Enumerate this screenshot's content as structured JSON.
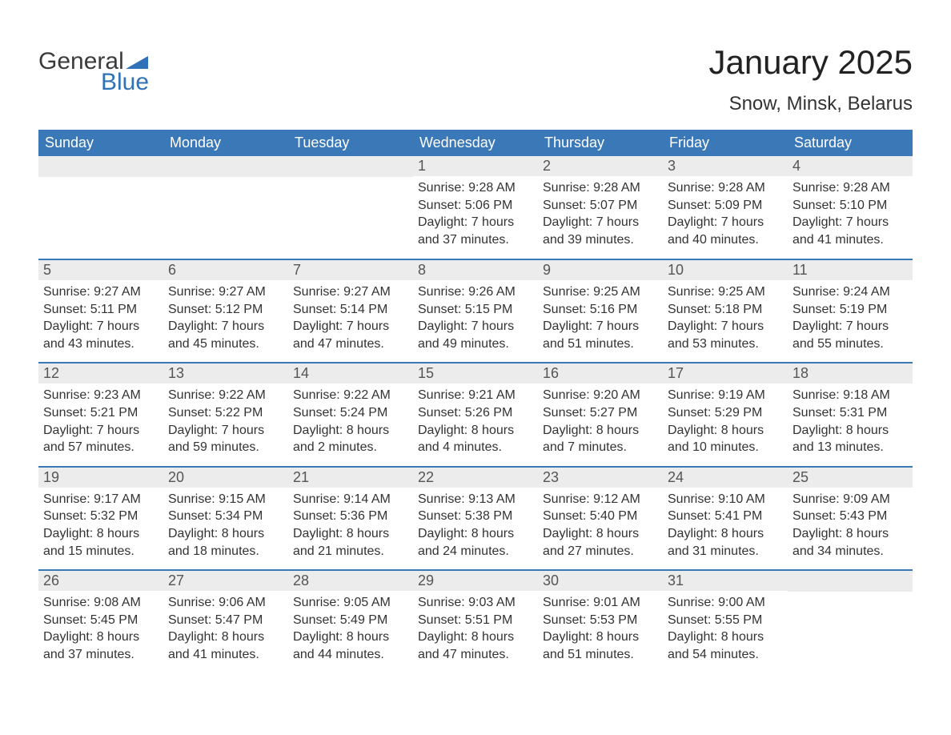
{
  "logo": {
    "text1": "General",
    "text2": "Blue",
    "tri_color": "#2f72b8"
  },
  "title": "January 2025",
  "location": "Snow, Minsk, Belarus",
  "styling": {
    "header_bg": "#3b78b8",
    "header_text": "#ffffff",
    "daynum_bg": "#ececec",
    "daynum_text": "#555555",
    "body_text": "#333333",
    "row_border": "#3b78b8",
    "page_bg": "#ffffff",
    "title_fontsize": 42,
    "location_fontsize": 24,
    "weekday_fontsize": 18,
    "body_fontsize": 16
  },
  "weekdays": [
    "Sunday",
    "Monday",
    "Tuesday",
    "Wednesday",
    "Thursday",
    "Friday",
    "Saturday"
  ],
  "weeks": [
    [
      {
        "day": "",
        "lines": []
      },
      {
        "day": "",
        "lines": []
      },
      {
        "day": "",
        "lines": []
      },
      {
        "day": "1",
        "lines": [
          "Sunrise: 9:28 AM",
          "Sunset: 5:06 PM",
          "Daylight: 7 hours and 37 minutes."
        ]
      },
      {
        "day": "2",
        "lines": [
          "Sunrise: 9:28 AM",
          "Sunset: 5:07 PM",
          "Daylight: 7 hours and 39 minutes."
        ]
      },
      {
        "day": "3",
        "lines": [
          "Sunrise: 9:28 AM",
          "Sunset: 5:09 PM",
          "Daylight: 7 hours and 40 minutes."
        ]
      },
      {
        "day": "4",
        "lines": [
          "Sunrise: 9:28 AM",
          "Sunset: 5:10 PM",
          "Daylight: 7 hours and 41 minutes."
        ]
      }
    ],
    [
      {
        "day": "5",
        "lines": [
          "Sunrise: 9:27 AM",
          "Sunset: 5:11 PM",
          "Daylight: 7 hours and 43 minutes."
        ]
      },
      {
        "day": "6",
        "lines": [
          "Sunrise: 9:27 AM",
          "Sunset: 5:12 PM",
          "Daylight: 7 hours and 45 minutes."
        ]
      },
      {
        "day": "7",
        "lines": [
          "Sunrise: 9:27 AM",
          "Sunset: 5:14 PM",
          "Daylight: 7 hours and 47 minutes."
        ]
      },
      {
        "day": "8",
        "lines": [
          "Sunrise: 9:26 AM",
          "Sunset: 5:15 PM",
          "Daylight: 7 hours and 49 minutes."
        ]
      },
      {
        "day": "9",
        "lines": [
          "Sunrise: 9:25 AM",
          "Sunset: 5:16 PM",
          "Daylight: 7 hours and 51 minutes."
        ]
      },
      {
        "day": "10",
        "lines": [
          "Sunrise: 9:25 AM",
          "Sunset: 5:18 PM",
          "Daylight: 7 hours and 53 minutes."
        ]
      },
      {
        "day": "11",
        "lines": [
          "Sunrise: 9:24 AM",
          "Sunset: 5:19 PM",
          "Daylight: 7 hours and 55 minutes."
        ]
      }
    ],
    [
      {
        "day": "12",
        "lines": [
          "Sunrise: 9:23 AM",
          "Sunset: 5:21 PM",
          "Daylight: 7 hours and 57 minutes."
        ]
      },
      {
        "day": "13",
        "lines": [
          "Sunrise: 9:22 AM",
          "Sunset: 5:22 PM",
          "Daylight: 7 hours and 59 minutes."
        ]
      },
      {
        "day": "14",
        "lines": [
          "Sunrise: 9:22 AM",
          "Sunset: 5:24 PM",
          "Daylight: 8 hours and 2 minutes."
        ]
      },
      {
        "day": "15",
        "lines": [
          "Sunrise: 9:21 AM",
          "Sunset: 5:26 PM",
          "Daylight: 8 hours and 4 minutes."
        ]
      },
      {
        "day": "16",
        "lines": [
          "Sunrise: 9:20 AM",
          "Sunset: 5:27 PM",
          "Daylight: 8 hours and 7 minutes."
        ]
      },
      {
        "day": "17",
        "lines": [
          "Sunrise: 9:19 AM",
          "Sunset: 5:29 PM",
          "Daylight: 8 hours and 10 minutes."
        ]
      },
      {
        "day": "18",
        "lines": [
          "Sunrise: 9:18 AM",
          "Sunset: 5:31 PM",
          "Daylight: 8 hours and 13 minutes."
        ]
      }
    ],
    [
      {
        "day": "19",
        "lines": [
          "Sunrise: 9:17 AM",
          "Sunset: 5:32 PM",
          "Daylight: 8 hours and 15 minutes."
        ]
      },
      {
        "day": "20",
        "lines": [
          "Sunrise: 9:15 AM",
          "Sunset: 5:34 PM",
          "Daylight: 8 hours and 18 minutes."
        ]
      },
      {
        "day": "21",
        "lines": [
          "Sunrise: 9:14 AM",
          "Sunset: 5:36 PM",
          "Daylight: 8 hours and 21 minutes."
        ]
      },
      {
        "day": "22",
        "lines": [
          "Sunrise: 9:13 AM",
          "Sunset: 5:38 PM",
          "Daylight: 8 hours and 24 minutes."
        ]
      },
      {
        "day": "23",
        "lines": [
          "Sunrise: 9:12 AM",
          "Sunset: 5:40 PM",
          "Daylight: 8 hours and 27 minutes."
        ]
      },
      {
        "day": "24",
        "lines": [
          "Sunrise: 9:10 AM",
          "Sunset: 5:41 PM",
          "Daylight: 8 hours and 31 minutes."
        ]
      },
      {
        "day": "25",
        "lines": [
          "Sunrise: 9:09 AM",
          "Sunset: 5:43 PM",
          "Daylight: 8 hours and 34 minutes."
        ]
      }
    ],
    [
      {
        "day": "26",
        "lines": [
          "Sunrise: 9:08 AM",
          "Sunset: 5:45 PM",
          "Daylight: 8 hours and 37 minutes."
        ]
      },
      {
        "day": "27",
        "lines": [
          "Sunrise: 9:06 AM",
          "Sunset: 5:47 PM",
          "Daylight: 8 hours and 41 minutes."
        ]
      },
      {
        "day": "28",
        "lines": [
          "Sunrise: 9:05 AM",
          "Sunset: 5:49 PM",
          "Daylight: 8 hours and 44 minutes."
        ]
      },
      {
        "day": "29",
        "lines": [
          "Sunrise: 9:03 AM",
          "Sunset: 5:51 PM",
          "Daylight: 8 hours and 47 minutes."
        ]
      },
      {
        "day": "30",
        "lines": [
          "Sunrise: 9:01 AM",
          "Sunset: 5:53 PM",
          "Daylight: 8 hours and 51 minutes."
        ]
      },
      {
        "day": "31",
        "lines": [
          "Sunrise: 9:00 AM",
          "Sunset: 5:55 PM",
          "Daylight: 8 hours and 54 minutes."
        ]
      },
      {
        "day": "",
        "lines": []
      }
    ]
  ]
}
